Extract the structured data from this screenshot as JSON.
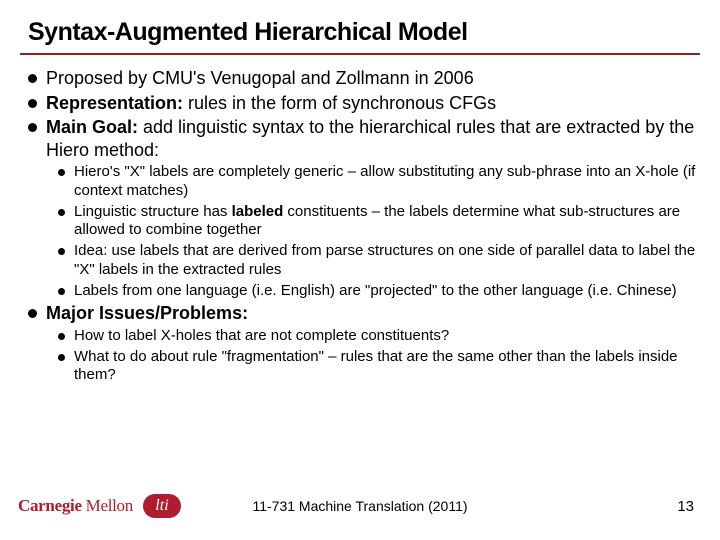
{
  "title": "Syntax-Augmented Hierarchical Model",
  "rule_color": "#9b1c1c",
  "bullets": [
    {
      "html": "Proposed by CMU's Venugopal and Zollmann in 2006"
    },
    {
      "html": "<span class='b1'>Representation:</span> rules in the form of synchronous CFGs"
    },
    {
      "html": "<span class='b1'>Main Goal:</span> add linguistic syntax to the hierarchical rules that are extracted by the Hiero method:",
      "sub": [
        "Hiero's \"X\" labels are completely generic – allow substituting any sub-phrase into an X-hole (if context matches)",
        "Linguistic structure has <span class='b1'>labeled</span> constituents – the labels determine what sub-structures are allowed to combine together",
        "Idea: use labels that are derived from parse structures on one side of parallel data to label the \"X\" labels in the extracted rules",
        "Labels from one language (i.e. English) are \"projected\" to the other language (i.e. Chinese)"
      ]
    },
    {
      "html": "<span class='b1'>Major Issues/Problems:</span>",
      "sub": [
        "How to label X-holes that are not complete constituents?",
        "What to do about rule \"fragmentation\" – rules that are the same other than the labels inside them?"
      ]
    }
  ],
  "footer": {
    "logo_carnegie": "Carnegie",
    "logo_mellon": " Mellon",
    "lti": "lti",
    "center": "11-731 Machine Translation (2011)",
    "pagenum": "13",
    "accent": "#b01c2e"
  }
}
